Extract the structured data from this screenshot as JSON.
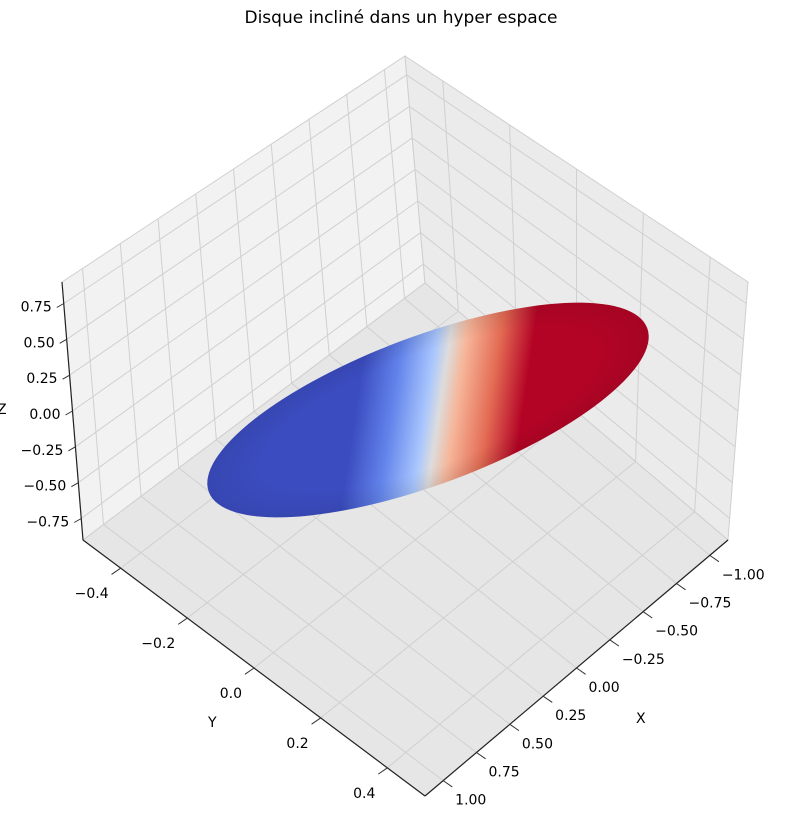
{
  "chart_data": {
    "type": "surface3d",
    "title": "Disque incliné dans un hyper espace",
    "xlabel": "X",
    "ylabel": "Y",
    "zlabel": "Z",
    "xlim": [
      -1.0,
      1.0
    ],
    "ylim": [
      -0.5,
      0.5
    ],
    "zlim": [
      -0.9,
      0.9
    ],
    "xticks": [
      "−1.00",
      "−0.75",
      "−0.50",
      "−0.25",
      "0.00",
      "0.25",
      "0.50",
      "0.75",
      "1.00"
    ],
    "yticks": [
      "−0.4",
      "−0.2",
      "0.0",
      "0.2",
      "0.4"
    ],
    "zticks": [
      "−0.75",
      "−0.50",
      "−0.25",
      "0.00",
      "0.25",
      "0.50",
      "0.75"
    ],
    "grid": true,
    "colormap": "coolwarm",
    "colors": {
      "low": "#3b4cc0",
      "mid": "#dddddd",
      "high": "#b40426"
    },
    "surface": "tilted disk of radius 1 centered at origin, colored by height"
  }
}
